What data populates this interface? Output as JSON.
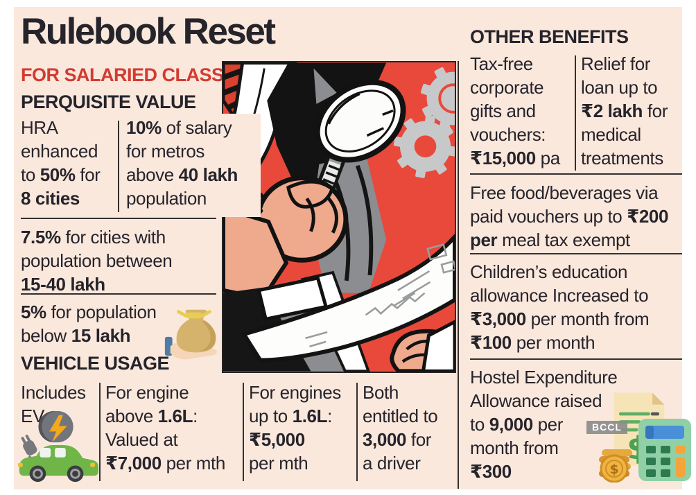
{
  "colors": {
    "page_bg": "#ffffff",
    "panel_bg": "#fbe8dd",
    "ink": "#26242b",
    "accent_red": "#d23b31",
    "illustration_red": "#e8493b",
    "gear_gray": "#c7c8ca",
    "divider": "#33302f"
  },
  "header": {
    "title": "Rulebook Reset",
    "subtitle": "FOR SALARIED CLASS"
  },
  "perquisite": {
    "heading": "PERQUISITE VALUE",
    "hra": [
      {
        "t": "HRA\nenhanced\nto "
      },
      {
        "t": "50%",
        "b": true
      },
      {
        "t": " for\n"
      },
      {
        "t": "8 cities",
        "b": true
      }
    ],
    "metros": [
      {
        "t": "10%",
        "b": true
      },
      {
        "t": " of salary\nfor metros\nabove "
      },
      {
        "t": "40 lakh",
        "b": true
      },
      {
        "t": "\npopulation"
      }
    ],
    "mid_cities": [
      {
        "t": "7.5%",
        "b": true
      },
      {
        "t": " for cities with\npopulation between\n"
      },
      {
        "t": "15-40 lakh",
        "b": true
      }
    ],
    "small_cities": [
      {
        "t": "5%",
        "b": true
      },
      {
        "t": " for population\nbelow "
      },
      {
        "t": "15 lakh",
        "b": true
      }
    ]
  },
  "vehicle": {
    "heading": "VEHICLE USAGE",
    "includes_evs": [
      {
        "t": "Includes\nEVs"
      }
    ],
    "engine_above": [
      {
        "t": "For engine\nabove "
      },
      {
        "t": "1.6L",
        "b": true
      },
      {
        "t": ":\nValued at\n"
      },
      {
        "t": "₹7,000",
        "b": true
      },
      {
        "t": " per mth"
      }
    ],
    "engine_upto": [
      {
        "t": "For engines\nup to "
      },
      {
        "t": "1.6L",
        "b": true
      },
      {
        "t": ":\n"
      },
      {
        "t": "₹5,000",
        "b": true
      },
      {
        "t": "\nper mth"
      }
    ],
    "driver": [
      {
        "t": "Both\nentitled to\n"
      },
      {
        "t": "3,000",
        "b": true
      },
      {
        "t": " for\na driver"
      }
    ]
  },
  "other_benefits": {
    "heading": "OTHER BENEFITS",
    "corporate_gifts": [
      {
        "t": "Tax-free\ncorporate\ngifts and\nvouchers:\n"
      },
      {
        "t": "₹15,000",
        "b": true
      },
      {
        "t": " pa"
      }
    ],
    "medical_loan": [
      {
        "t": "Relief for\nloan up to\n"
      },
      {
        "t": "₹2 lakh",
        "b": true
      },
      {
        "t": " for\nmedical\ntreatments"
      }
    ],
    "food_vouchers": [
      {
        "t": "Free food/beverages via\npaid vouchers up to "
      },
      {
        "t": "₹200\nper",
        "b": true
      },
      {
        "t": " meal tax exempt"
      }
    ],
    "education": [
      {
        "t": "Children’s education\nallowance Increased to\n"
      },
      {
        "t": "₹3,000",
        "b": true
      },
      {
        "t": " per month from\n"
      },
      {
        "t": "₹100",
        "b": true
      },
      {
        "t": " per month"
      }
    ],
    "hostel": [
      {
        "t": "Hostel Expenditure\nAllowance raised\nto "
      },
      {
        "t": "9,000",
        "b": true
      },
      {
        "t": " per\nmonth from\n"
      },
      {
        "t": "₹300",
        "b": true
      }
    ]
  },
  "watermark": "BCCL",
  "icons": {
    "money_bag": "money-bag-in-hand-icon",
    "ev_car": "electric-car-icon",
    "receipt": "receipt-icon",
    "coins": "coins-icon",
    "calculator": "calculator-icon",
    "illustration": "magnifier-inspection-illustration"
  }
}
